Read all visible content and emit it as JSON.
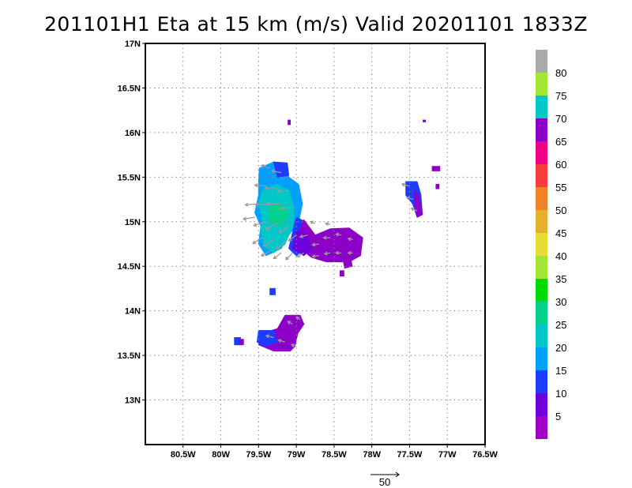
{
  "title": "201101H1 Eta at 15 km (m/s) Valid 20201101 1833Z",
  "chart_data": {
    "type": "heatmap",
    "title": "201101H1 Eta at 15 km (m/s) Valid 20201101 1833Z",
    "xlabel": "",
    "ylabel": "",
    "xlim": [
      -81.0,
      -76.5
    ],
    "ylim": [
      12.5,
      17.0
    ],
    "grid": true,
    "x_ticks": [
      {
        "value": -80.5,
        "label": "80.5W"
      },
      {
        "value": -80.0,
        "label": "80W"
      },
      {
        "value": -79.5,
        "label": "79.5W"
      },
      {
        "value": -79.0,
        "label": "79W"
      },
      {
        "value": -78.5,
        "label": "78.5W"
      },
      {
        "value": -78.0,
        "label": "78W"
      },
      {
        "value": -77.5,
        "label": "77.5W"
      },
      {
        "value": -77.0,
        "label": "77W"
      },
      {
        "value": -76.5,
        "label": "76.5W"
      }
    ],
    "y_ticks": [
      {
        "value": 13.0,
        "label": "13N"
      },
      {
        "value": 13.5,
        "label": "13.5N"
      },
      {
        "value": 14.0,
        "label": "14N"
      },
      {
        "value": 14.5,
        "label": "14.5N"
      },
      {
        "value": 15.0,
        "label": "15N"
      },
      {
        "value": 15.5,
        "label": "15.5N"
      },
      {
        "value": 16.0,
        "label": "16N"
      },
      {
        "value": 16.5,
        "label": "16.5N"
      },
      {
        "value": 17.0,
        "label": "17N"
      }
    ],
    "colorbar": {
      "position": "right",
      "levels": [
        {
          "color": "#a000c8",
          "label": "5"
        },
        {
          "color": "#6e00dc",
          "label": "10"
        },
        {
          "color": "#1e3cff",
          "label": "15"
        },
        {
          "color": "#00a0ff",
          "label": "20"
        },
        {
          "color": "#00c8c8",
          "label": "25"
        },
        {
          "color": "#00d28c",
          "label": "30"
        },
        {
          "color": "#00dc00",
          "label": "35"
        },
        {
          "color": "#a0e632",
          "label": "40"
        },
        {
          "color": "#e6dc32",
          "label": "45"
        },
        {
          "color": "#e6af2d",
          "label": "50"
        },
        {
          "color": "#f08228",
          "label": "55"
        },
        {
          "color": "#fa3c3c",
          "label": "60"
        },
        {
          "color": "#f00082",
          "label": "65"
        },
        {
          "color": "#8c00c8",
          "label": "70"
        },
        {
          "color": "#00c8c8",
          "label": "75"
        },
        {
          "color": "#a0e632",
          "label": "80"
        },
        {
          "color": "#aaaaaa",
          "label": ""
        }
      ]
    },
    "regions": [
      {
        "name": "main-core-west",
        "fill": "#00a0ff",
        "points": [
          [
            -79.49,
            15.6
          ],
          [
            -79.3,
            15.67
          ],
          [
            -79.15,
            15.63
          ],
          [
            -79.1,
            15.5
          ],
          [
            -78.97,
            15.42
          ],
          [
            -78.92,
            15.2
          ],
          [
            -78.97,
            15.0
          ],
          [
            -79.1,
            14.85
          ],
          [
            -79.2,
            14.7
          ],
          [
            -79.4,
            14.62
          ],
          [
            -79.5,
            14.75
          ],
          [
            -79.47,
            14.95
          ],
          [
            -79.55,
            15.1
          ],
          [
            -79.5,
            15.3
          ],
          [
            -79.5,
            15.45
          ]
        ]
      },
      {
        "name": "main-core-teal",
        "fill": "#00c8c8",
        "points": [
          [
            -79.45,
            15.35
          ],
          [
            -79.25,
            15.42
          ],
          [
            -79.1,
            15.35
          ],
          [
            -79.03,
            15.15
          ],
          [
            -79.05,
            14.95
          ],
          [
            -79.15,
            14.75
          ],
          [
            -79.3,
            14.65
          ],
          [
            -79.42,
            14.72
          ],
          [
            -79.47,
            14.9
          ],
          [
            -79.45,
            15.05
          ],
          [
            -79.5,
            15.2
          ]
        ]
      },
      {
        "name": "main-core-green",
        "fill": "#00d28c",
        "points": [
          [
            -79.38,
            15.15
          ],
          [
            -79.2,
            15.2
          ],
          [
            -79.1,
            15.08
          ],
          [
            -79.2,
            14.95
          ],
          [
            -79.35,
            15.0
          ]
        ]
      },
      {
        "name": "main-core-top-blue",
        "fill": "#1e3cff",
        "points": [
          [
            -79.3,
            15.67
          ],
          [
            -79.12,
            15.66
          ],
          [
            -79.1,
            15.52
          ],
          [
            -79.25,
            15.5
          ]
        ]
      },
      {
        "name": "main-east-blue",
        "fill": "#1e3cff",
        "points": [
          [
            -79.0,
            15.05
          ],
          [
            -78.88,
            15.0
          ],
          [
            -78.85,
            14.82
          ],
          [
            -78.9,
            14.68
          ],
          [
            -79.0,
            14.62
          ],
          [
            -79.1,
            14.7
          ],
          [
            -79.05,
            14.88
          ]
        ]
      },
      {
        "name": "main-east-purple",
        "fill": "#8c00c8",
        "points": [
          [
            -78.9,
            15.02
          ],
          [
            -78.75,
            14.85
          ],
          [
            -78.55,
            14.92
          ],
          [
            -78.3,
            14.93
          ],
          [
            -78.12,
            14.82
          ],
          [
            -78.15,
            14.62
          ],
          [
            -78.3,
            14.55
          ],
          [
            -78.6,
            14.55
          ],
          [
            -78.8,
            14.6
          ],
          [
            -78.95,
            14.7
          ],
          [
            -78.98,
            14.85
          ]
        ]
      },
      {
        "name": "main-east-violet-edge",
        "fill": "#6e00dc",
        "points": [
          [
            -79.05,
            14.7
          ],
          [
            -78.9,
            14.62
          ],
          [
            -78.8,
            14.7
          ],
          [
            -78.85,
            14.85
          ],
          [
            -79.0,
            14.9
          ]
        ]
      },
      {
        "name": "small-east-blob",
        "fill": "#8c00c8",
        "points": [
          [
            -78.38,
            14.57
          ],
          [
            -78.28,
            14.6
          ],
          [
            -78.26,
            14.5
          ],
          [
            -78.36,
            14.48
          ]
        ]
      },
      {
        "name": "small-east-blob2",
        "fill": "#8c00c8",
        "points": [
          [
            -78.42,
            14.45
          ],
          [
            -78.37,
            14.45
          ],
          [
            -78.37,
            14.39
          ],
          [
            -78.42,
            14.39
          ]
        ]
      },
      {
        "name": "east-strip-blue",
        "fill": "#1e3cff",
        "points": [
          [
            -77.55,
            15.45
          ],
          [
            -77.4,
            15.45
          ],
          [
            -77.35,
            15.3
          ],
          [
            -77.33,
            15.08
          ],
          [
            -77.4,
            15.05
          ],
          [
            -77.46,
            15.2
          ],
          [
            -77.55,
            15.3
          ]
        ]
      },
      {
        "name": "east-strip-purple",
        "fill": "#8c00c8",
        "points": [
          [
            -77.43,
            15.35
          ],
          [
            -77.38,
            15.3
          ],
          [
            -77.33,
            15.08
          ],
          [
            -77.4,
            15.05
          ],
          [
            -77.43,
            15.2
          ]
        ]
      },
      {
        "name": "east-dot-a",
        "fill": "#8c00c8",
        "points": [
          [
            -77.2,
            15.62
          ],
          [
            -77.1,
            15.62
          ],
          [
            -77.1,
            15.57
          ],
          [
            -77.2,
            15.57
          ]
        ]
      },
      {
        "name": "east-dot-b",
        "fill": "#8c00c8",
        "points": [
          [
            -77.15,
            15.42
          ],
          [
            -77.11,
            15.42
          ],
          [
            -77.11,
            15.37
          ],
          [
            -77.15,
            15.37
          ]
        ]
      },
      {
        "name": "north-dot-a",
        "fill": "#8c00c8",
        "points": [
          [
            -79.11,
            16.14
          ],
          [
            -79.08,
            16.14
          ],
          [
            -79.08,
            16.09
          ],
          [
            -79.11,
            16.09
          ]
        ]
      },
      {
        "name": "north-dot-b",
        "fill": "#6e00dc",
        "points": [
          [
            -77.32,
            16.14
          ],
          [
            -77.29,
            16.14
          ],
          [
            -77.29,
            16.12
          ],
          [
            -77.32,
            16.12
          ]
        ]
      },
      {
        "name": "mid-small-blue",
        "fill": "#1e3cff",
        "points": [
          [
            -79.35,
            14.25
          ],
          [
            -79.28,
            14.25
          ],
          [
            -79.28,
            14.18
          ],
          [
            -79.35,
            14.18
          ]
        ]
      },
      {
        "name": "south-purple",
        "fill": "#8c00c8",
        "points": [
          [
            -79.15,
            13.95
          ],
          [
            -78.95,
            13.95
          ],
          [
            -78.9,
            13.85
          ],
          [
            -78.98,
            13.75
          ],
          [
            -79.02,
            13.6
          ],
          [
            -79.08,
            13.55
          ],
          [
            -79.3,
            13.55
          ],
          [
            -79.5,
            13.62
          ],
          [
            -79.45,
            13.75
          ],
          [
            -79.25,
            13.8
          ]
        ]
      },
      {
        "name": "south-blue",
        "fill": "#1e3cff",
        "points": [
          [
            -79.5,
            13.78
          ],
          [
            -79.3,
            13.78
          ],
          [
            -79.25,
            13.65
          ],
          [
            -79.42,
            13.6
          ],
          [
            -79.52,
            13.65
          ]
        ]
      },
      {
        "name": "south-west-dot",
        "fill": "#1e3cff",
        "points": [
          [
            -79.82,
            13.7
          ],
          [
            -79.74,
            13.7
          ],
          [
            -79.74,
            13.62
          ],
          [
            -79.82,
            13.62
          ]
        ]
      },
      {
        "name": "south-west-dot2",
        "fill": "#8c00c8",
        "points": [
          [
            -79.75,
            13.68
          ],
          [
            -79.7,
            13.68
          ],
          [
            -79.7,
            13.62
          ],
          [
            -79.75,
            13.62
          ]
        ]
      }
    ],
    "vectors": [
      {
        "lon": -79.35,
        "lat": 15.6,
        "u": -9,
        "v": 3
      },
      {
        "lon": -79.2,
        "lat": 15.55,
        "u": -10,
        "v": 2
      },
      {
        "lon": -79.4,
        "lat": 15.4,
        "u": -12,
        "v": 1
      },
      {
        "lon": -79.25,
        "lat": 15.38,
        "u": -13,
        "v": 0
      },
      {
        "lon": -79.1,
        "lat": 15.35,
        "u": -12,
        "v": -1
      },
      {
        "lon": -79.5,
        "lat": 15.2,
        "u": -14,
        "v": -1
      },
      {
        "lon": -79.35,
        "lat": 15.2,
        "u": -15,
        "v": -1
      },
      {
        "lon": -79.2,
        "lat": 15.2,
        "u": -15,
        "v": 0
      },
      {
        "lon": -79.05,
        "lat": 15.15,
        "u": -13,
        "v": 0
      },
      {
        "lon": -79.55,
        "lat": 15.05,
        "u": -12,
        "v": -2
      },
      {
        "lon": -79.4,
        "lat": 15.0,
        "u": -13,
        "v": -4
      },
      {
        "lon": -79.25,
        "lat": 14.98,
        "u": -12,
        "v": -6
      },
      {
        "lon": -79.1,
        "lat": 14.95,
        "u": -10,
        "v": -7
      },
      {
        "lon": -79.45,
        "lat": 14.82,
        "u": -10,
        "v": -6
      },
      {
        "lon": -79.3,
        "lat": 14.8,
        "u": -11,
        "v": -7
      },
      {
        "lon": -79.15,
        "lat": 14.78,
        "u": -9,
        "v": -8
      },
      {
        "lon": -79.0,
        "lat": 14.85,
        "u": -8,
        "v": -6
      },
      {
        "lon": -79.35,
        "lat": 14.67,
        "u": -9,
        "v": -5
      },
      {
        "lon": -79.2,
        "lat": 14.65,
        "u": -8,
        "v": -6
      },
      {
        "lon": -79.05,
        "lat": 14.65,
        "u": -7,
        "v": -7
      },
      {
        "lon": -78.9,
        "lat": 14.65,
        "u": -7,
        "v": -4
      },
      {
        "lon": -78.85,
        "lat": 14.85,
        "u": -8,
        "v": -2
      },
      {
        "lon": -78.7,
        "lat": 14.75,
        "u": -7,
        "v": -1
      },
      {
        "lon": -78.55,
        "lat": 14.82,
        "u": -7,
        "v": 0
      },
      {
        "lon": -78.4,
        "lat": 14.85,
        "u": -6,
        "v": 1
      },
      {
        "lon": -78.25,
        "lat": 14.8,
        "u": -5,
        "v": 1
      },
      {
        "lon": -78.7,
        "lat": 14.62,
        "u": -7,
        "v": -1
      },
      {
        "lon": -78.55,
        "lat": 14.65,
        "u": -6,
        "v": -1
      },
      {
        "lon": -78.4,
        "lat": 14.65,
        "u": -6,
        "v": 0
      },
      {
        "lon": -78.25,
        "lat": 14.65,
        "u": -5,
        "v": 0
      },
      {
        "lon": -78.55,
        "lat": 14.97,
        "u": -5,
        "v": 1
      },
      {
        "lon": -78.75,
        "lat": 14.98,
        "u": -5,
        "v": 2
      },
      {
        "lon": -77.5,
        "lat": 15.4,
        "u": -8,
        "v": 2
      },
      {
        "lon": -77.45,
        "lat": 15.25,
        "u": -7,
        "v": 2
      },
      {
        "lon": -77.4,
        "lat": 15.12,
        "u": -6,
        "v": 3
      },
      {
        "lon": -79.3,
        "lat": 13.7,
        "u": -8,
        "v": 2
      },
      {
        "lon": -79.15,
        "lat": 13.65,
        "u": -7,
        "v": 2
      },
      {
        "lon": -79.05,
        "lat": 13.85,
        "u": -5,
        "v": 3
      },
      {
        "lon": -78.95,
        "lat": 13.9,
        "u": -4,
        "v": 3
      },
      {
        "lon": -79.0,
        "lat": 13.6,
        "u": -5,
        "v": 2
      }
    ],
    "reference_vector": {
      "magnitude": 50,
      "label": "50"
    }
  }
}
